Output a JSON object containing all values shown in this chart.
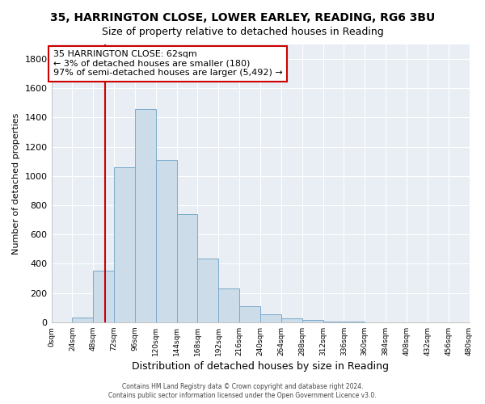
{
  "title1": "35, HARRINGTON CLOSE, LOWER EARLEY, READING, RG6 3BU",
  "title2": "Size of property relative to detached houses in Reading",
  "xlabel": "Distribution of detached houses by size in Reading",
  "ylabel": "Number of detached properties",
  "bar_edges": [
    0,
    24,
    48,
    72,
    96,
    120,
    144,
    168,
    192,
    216,
    240,
    264,
    288,
    312,
    336,
    360,
    384,
    408,
    432,
    456,
    480
  ],
  "bar_heights": [
    0,
    30,
    355,
    1060,
    1460,
    1110,
    740,
    435,
    230,
    110,
    55,
    25,
    15,
    5,
    2,
    1,
    0,
    0,
    0,
    0
  ],
  "bar_color": "#ccdce8",
  "bar_edge_color": "#7aaacc",
  "property_line_x": 62,
  "property_line_color": "#cc0000",
  "ylim": [
    0,
    1900
  ],
  "annotation_text": "35 HARRINGTON CLOSE: 62sqm\n← 3% of detached houses are smaller (180)\n97% of semi-detached houses are larger (5,492) →",
  "annotation_box_color": "#ffffff",
  "annotation_box_edgecolor": "#cc0000",
  "footer1": "Contains HM Land Registry data © Crown copyright and database right 2024.",
  "footer2": "Contains public sector information licensed under the Open Government Licence v3.0.",
  "tick_labels": [
    "0sqm",
    "24sqm",
    "48sqm",
    "72sqm",
    "96sqm",
    "120sqm",
    "144sqm",
    "168sqm",
    "192sqm",
    "216sqm",
    "240sqm",
    "264sqm",
    "288sqm",
    "312sqm",
    "336sqm",
    "360sqm",
    "384sqm",
    "408sqm",
    "432sqm",
    "456sqm",
    "480sqm"
  ],
  "yticks": [
    0,
    200,
    400,
    600,
    800,
    1000,
    1200,
    1400,
    1600,
    1800
  ],
  "background_color": "#ffffff",
  "axes_background": "#e8eef4",
  "grid_color": "#ffffff",
  "title1_fontsize": 10,
  "title2_fontsize": 9,
  "xlabel_fontsize": 9,
  "ylabel_fontsize": 8
}
